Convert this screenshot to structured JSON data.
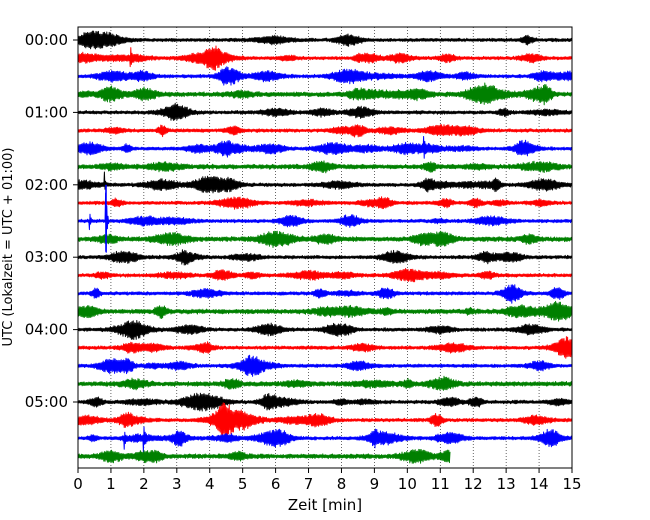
{
  "chart_data": {
    "type": "line",
    "title": "",
    "xlabel": "Zeit  [min]",
    "ylabel": "UTC (Lokalzeit = UTC + 01:00)",
    "xlim": [
      0,
      15
    ],
    "x_ticks": [
      0,
      1,
      2,
      3,
      4,
      5,
      6,
      7,
      8,
      9,
      10,
      11,
      12,
      13,
      14,
      15
    ],
    "y_tick_labels": [
      "00:00",
      "01:00",
      "02:00",
      "03:00",
      "04:00",
      "05:00"
    ],
    "y_tick_rows": [
      0,
      4,
      8,
      12,
      16,
      20
    ],
    "grid": "vertical dotted lines at each minute",
    "row_minutes": 15,
    "row_count": 24,
    "color_cycle": [
      "#000000",
      "#ff0000",
      "#0000ff",
      "#008000"
    ],
    "last_row_end_min": 11.3,
    "events": [
      {
        "row": 10,
        "time_min": 0.85,
        "amplitude_rows": 1.0,
        "note": "large transient starting near 02:30"
      },
      {
        "row": 10,
        "time_min": 0.35,
        "amplitude_rows": 0.3
      },
      {
        "row": 8,
        "time_min": 0.8,
        "amplitude_rows": 0.3
      },
      {
        "row": 22,
        "time_min": 1.4,
        "amplitude_rows": 0.35
      },
      {
        "row": 22,
        "time_min": 2.0,
        "amplitude_rows": 0.3
      },
      {
        "row": 6,
        "time_min": 10.5,
        "amplitude_rows": 0.25
      },
      {
        "row": 1,
        "time_min": 1.6,
        "amplitude_rows": 0.2
      }
    ]
  }
}
